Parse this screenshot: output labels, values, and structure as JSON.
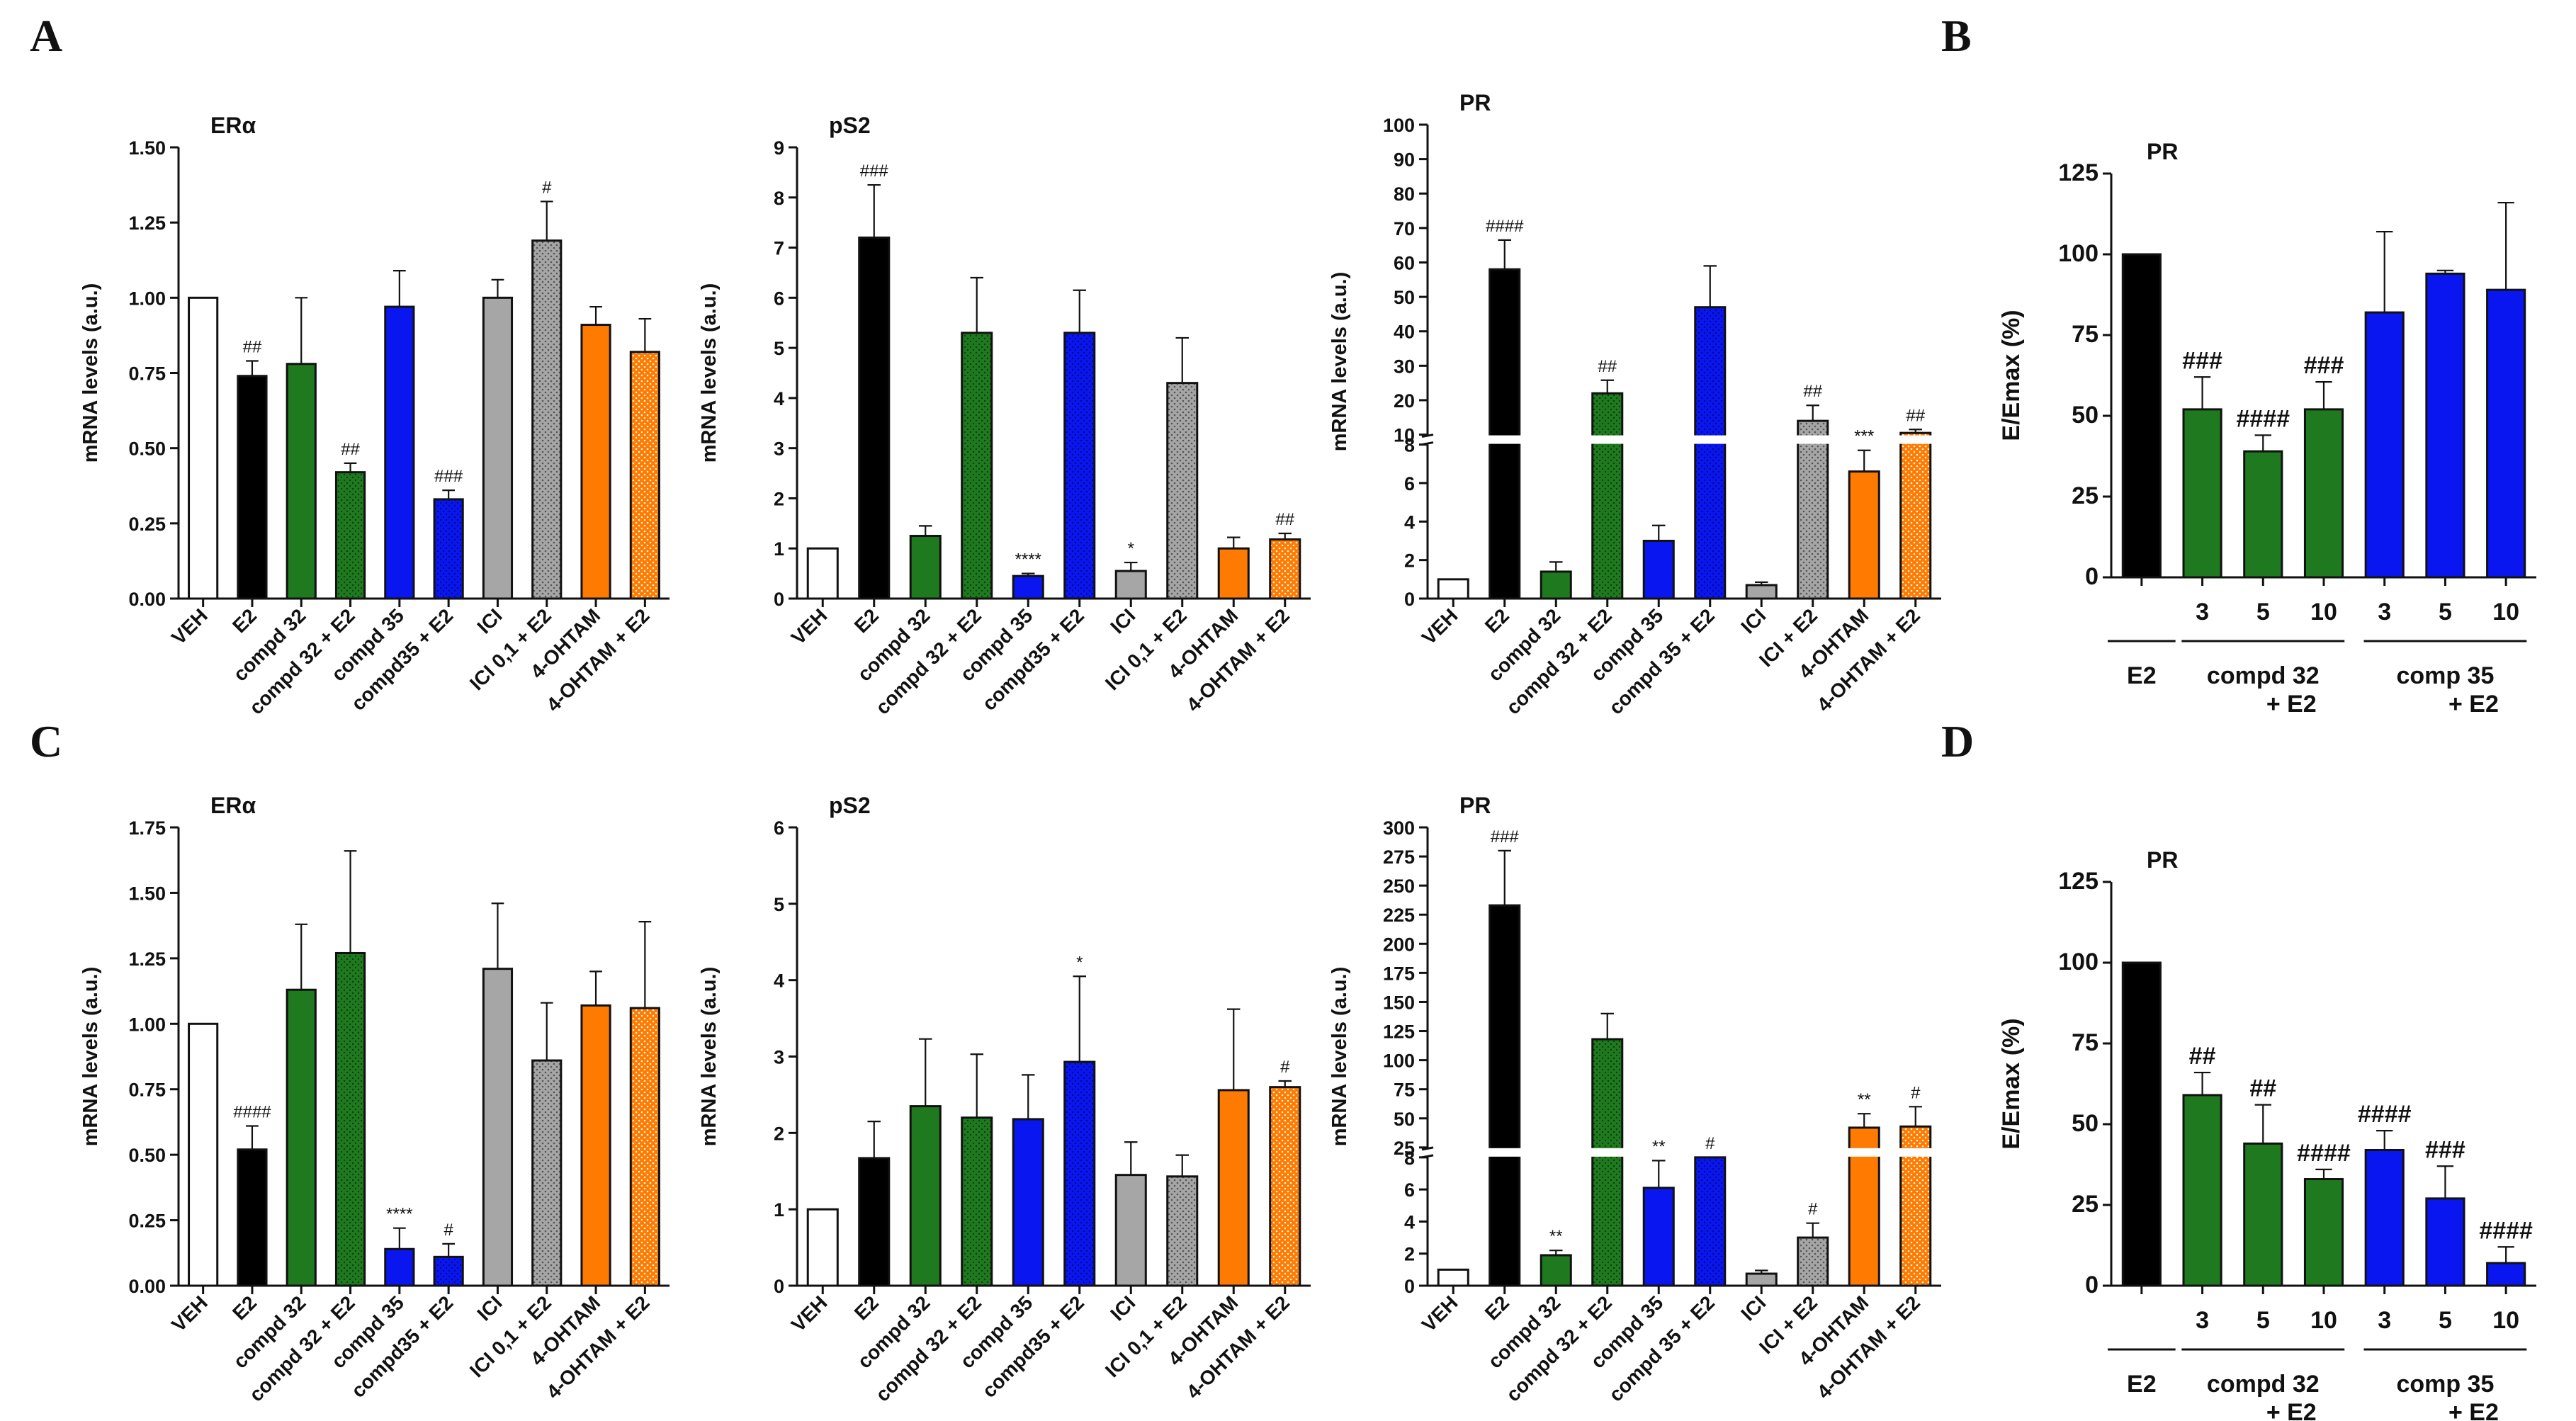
{
  "colors": {
    "white": "#ffffff",
    "black": "#000000",
    "green": "#1f7a1f",
    "blue": "#0a16f0",
    "gray": "#a6a6a6",
    "orange": "#ff7a00"
  },
  "panels": {
    "A": "A",
    "B": "B",
    "C": "C",
    "D": "D"
  },
  "chart_data": [
    {
      "id": "A1",
      "panel": "A",
      "type": "bar",
      "title": "ERα",
      "ylabel": "mRNA levels (a.u.)",
      "ylim": [
        0,
        1.5
      ],
      "ticks": [
        "0.00",
        "0.25",
        "0.50",
        "0.75",
        "1.00",
        "1.25",
        "1.50"
      ],
      "bars": [
        {
          "label": "VEH",
          "value": 1.0,
          "err": 0,
          "color": "white",
          "pattern": false,
          "sig": ""
        },
        {
          "label": "E2",
          "value": 0.74,
          "err": 0.05,
          "color": "black",
          "pattern": false,
          "sig": "##"
        },
        {
          "label": "compd 32",
          "value": 0.78,
          "err": 0.22,
          "color": "green",
          "pattern": false,
          "sig": ""
        },
        {
          "label": "compd 32 + E2",
          "value": 0.42,
          "err": 0.03,
          "color": "green",
          "pattern": true,
          "sig": "##"
        },
        {
          "label": "compd 35",
          "value": 0.97,
          "err": 0.12,
          "color": "blue",
          "pattern": false,
          "sig": ""
        },
        {
          "label": "compd35 + E2",
          "value": 0.33,
          "err": 0.03,
          "color": "blue",
          "pattern": true,
          "sig": "###"
        },
        {
          "label": "ICI",
          "value": 1.0,
          "err": 0.06,
          "color": "gray",
          "pattern": false,
          "sig": ""
        },
        {
          "label": "ICI 0,1 + E2",
          "value": 1.19,
          "err": 0.13,
          "color": "gray",
          "pattern": true,
          "sig": "#"
        },
        {
          "label": "4-OHTAM",
          "value": 0.91,
          "err": 0.06,
          "color": "orange",
          "pattern": false,
          "sig": ""
        },
        {
          "label": "4-OHTAM + E2",
          "value": 0.82,
          "err": 0.11,
          "color": "orange",
          "pattern": true,
          "sig": ""
        }
      ]
    },
    {
      "id": "A2",
      "panel": "A",
      "type": "bar",
      "title": "pS2",
      "ylabel": "mRNA levels (a.u.)",
      "ylim": [
        0,
        9
      ],
      "ticks": [
        "0",
        "1",
        "2",
        "3",
        "4",
        "5",
        "6",
        "7",
        "8",
        "9"
      ],
      "bars": [
        {
          "label": "VEH",
          "value": 1.0,
          "err": 0,
          "color": "white",
          "pattern": false,
          "sig": ""
        },
        {
          "label": "E2",
          "value": 7.2,
          "err": 1.05,
          "color": "black",
          "pattern": false,
          "sig": "###"
        },
        {
          "label": "compd 32",
          "value": 1.25,
          "err": 0.2,
          "color": "green",
          "pattern": false,
          "sig": ""
        },
        {
          "label": "compd 32 + E2",
          "value": 5.3,
          "err": 1.1,
          "color": "green",
          "pattern": true,
          "sig": ""
        },
        {
          "label": "compd 35",
          "value": 0.45,
          "err": 0.05,
          "color": "blue",
          "pattern": false,
          "sig": "****"
        },
        {
          "label": "compd35 + E2",
          "value": 5.3,
          "err": 0.85,
          "color": "blue",
          "pattern": true,
          "sig": ""
        },
        {
          "label": "ICI",
          "value": 0.55,
          "err": 0.17,
          "color": "gray",
          "pattern": false,
          "sig": "*"
        },
        {
          "label": "ICI 0,1 + E2",
          "value": 4.3,
          "err": 0.9,
          "color": "gray",
          "pattern": true,
          "sig": ""
        },
        {
          "label": "4-OHTAM",
          "value": 1.0,
          "err": 0.22,
          "color": "orange",
          "pattern": false,
          "sig": ""
        },
        {
          "label": "4-OHTAM + E2",
          "value": 1.18,
          "err": 0.12,
          "color": "orange",
          "pattern": true,
          "sig": "##"
        }
      ]
    },
    {
      "id": "A3",
      "panel": "A",
      "type": "bar",
      "title": "PR",
      "ylabel": "mRNA levels (a.u.)",
      "broken": true,
      "lower_max": 8,
      "upper_min": 10,
      "upper_max": 100,
      "lower_ticks": [
        "0",
        "2",
        "4",
        "6",
        "8"
      ],
      "upper_ticks": [
        "10",
        "20",
        "30",
        "40",
        "50",
        "60",
        "70",
        "80",
        "90",
        "100"
      ],
      "bars": [
        {
          "label": "VEH",
          "value": 1.0,
          "err": 0,
          "color": "white",
          "pattern": false,
          "sig": ""
        },
        {
          "label": "E2",
          "value": 58,
          "err": 8.5,
          "color": "black",
          "pattern": false,
          "sig": "####"
        },
        {
          "label": "compd 32",
          "value": 1.4,
          "err": 0.5,
          "color": "green",
          "pattern": false,
          "sig": ""
        },
        {
          "label": "compd 32 + E2",
          "value": 22,
          "err": 3.8,
          "color": "green",
          "pattern": true,
          "sig": "##"
        },
        {
          "label": "compd 35",
          "value": 3.0,
          "err": 0.8,
          "color": "blue",
          "pattern": false,
          "sig": ""
        },
        {
          "label": "compd 35 + E2",
          "value": 47,
          "err": 12,
          "color": "blue",
          "pattern": true,
          "sig": ""
        },
        {
          "label": "ICI",
          "value": 0.7,
          "err": 0.15,
          "color": "gray",
          "pattern": false,
          "sig": ""
        },
        {
          "label": "ICI + E2",
          "value": 14,
          "err": 4.5,
          "color": "gray",
          "pattern": true,
          "sig": "##"
        },
        {
          "label": "4-OHTAM",
          "value": 6.6,
          "err": 1.1,
          "color": "orange",
          "pattern": false,
          "sig": "***"
        },
        {
          "label": "4-OHTAM + E2",
          "value": 10.5,
          "err": 1.0,
          "color": "orange",
          "pattern": true,
          "sig": "##"
        }
      ]
    },
    {
      "id": "B",
      "panel": "B",
      "type": "bar",
      "title": "PR",
      "ylabel": "E/Emax (%)",
      "ylim": [
        0,
        125
      ],
      "ticks": [
        "0",
        "25",
        "50",
        "75",
        "100",
        "125"
      ],
      "bars": [
        {
          "label": "",
          "value": 100,
          "err": 0,
          "color": "black",
          "pattern": false,
          "sig": ""
        },
        {
          "label": "3",
          "value": 52,
          "err": 10,
          "color": "green",
          "pattern": false,
          "sig": "###"
        },
        {
          "label": "5",
          "value": 39,
          "err": 5,
          "color": "green",
          "pattern": false,
          "sig": "####"
        },
        {
          "label": "10",
          "value": 52,
          "err": 8.5,
          "color": "green",
          "pattern": false,
          "sig": "###"
        },
        {
          "label": "3",
          "value": 82,
          "err": 25,
          "color": "blue",
          "pattern": false,
          "sig": ""
        },
        {
          "label": "5",
          "value": 94,
          "err": 1,
          "color": "blue",
          "pattern": false,
          "sig": ""
        },
        {
          "label": "10",
          "value": 89,
          "err": 27,
          "color": "blue",
          "pattern": false,
          "sig": ""
        }
      ],
      "groups": [
        {
          "label": "E2",
          "sub": "",
          "from": 0,
          "to": 0
        },
        {
          "label": "compd 32",
          "sub": "+ E2",
          "from": 1,
          "to": 3
        },
        {
          "label": "comp 35",
          "sub": "+ E2",
          "from": 4,
          "to": 6
        }
      ]
    },
    {
      "id": "C1",
      "panel": "C",
      "type": "bar",
      "title": "ERα",
      "ylabel": "mRNA levels (a.u.)",
      "ylim": [
        0,
        1.75
      ],
      "ticks": [
        "0.00",
        "0.25",
        "0.50",
        "0.75",
        "1.00",
        "1.25",
        "1.50",
        "1.75"
      ],
      "bars": [
        {
          "label": "VEH",
          "value": 1.0,
          "err": 0,
          "color": "white",
          "pattern": false,
          "sig": ""
        },
        {
          "label": "E2",
          "value": 0.52,
          "err": 0.09,
          "color": "black",
          "pattern": false,
          "sig": "####"
        },
        {
          "label": "compd 32",
          "value": 1.13,
          "err": 0.25,
          "color": "green",
          "pattern": false,
          "sig": ""
        },
        {
          "label": "compd 32 + E2",
          "value": 1.27,
          "err": 0.39,
          "color": "green",
          "pattern": true,
          "sig": ""
        },
        {
          "label": "compd 35",
          "value": 0.14,
          "err": 0.08,
          "color": "blue",
          "pattern": false,
          "sig": "****"
        },
        {
          "label": "compd35 + E2",
          "value": 0.11,
          "err": 0.05,
          "color": "blue",
          "pattern": true,
          "sig": "#"
        },
        {
          "label": "ICI",
          "value": 1.21,
          "err": 0.25,
          "color": "gray",
          "pattern": false,
          "sig": ""
        },
        {
          "label": "ICI 0,1 + E2",
          "value": 0.86,
          "err": 0.22,
          "color": "gray",
          "pattern": true,
          "sig": ""
        },
        {
          "label": "4-OHTAM",
          "value": 1.07,
          "err": 0.13,
          "color": "orange",
          "pattern": false,
          "sig": ""
        },
        {
          "label": "4-OHTAM + E2",
          "value": 1.06,
          "err": 0.33,
          "color": "orange",
          "pattern": true,
          "sig": ""
        }
      ]
    },
    {
      "id": "C2",
      "panel": "C",
      "type": "bar",
      "title": "pS2",
      "ylabel": "mRNA levels (a.u.)",
      "ylim": [
        0,
        6
      ],
      "ticks": [
        "0",
        "1",
        "2",
        "3",
        "4",
        "5",
        "6"
      ],
      "bars": [
        {
          "label": "VEH",
          "value": 1.0,
          "err": 0,
          "color": "white",
          "pattern": false,
          "sig": ""
        },
        {
          "label": "E2",
          "value": 1.67,
          "err": 0.48,
          "color": "black",
          "pattern": false,
          "sig": ""
        },
        {
          "label": "compd 32",
          "value": 2.35,
          "err": 0.88,
          "color": "green",
          "pattern": false,
          "sig": ""
        },
        {
          "label": "compd 32 + E2",
          "value": 2.2,
          "err": 0.83,
          "color": "green",
          "pattern": true,
          "sig": ""
        },
        {
          "label": "compd 35",
          "value": 2.18,
          "err": 0.58,
          "color": "blue",
          "pattern": false,
          "sig": ""
        },
        {
          "label": "compd35 + E2",
          "value": 2.93,
          "err": 1.12,
          "color": "blue",
          "pattern": true,
          "sig": "*"
        },
        {
          "label": "ICI",
          "value": 1.45,
          "err": 0.43,
          "color": "gray",
          "pattern": false,
          "sig": ""
        },
        {
          "label": "ICI 0,1 + E2",
          "value": 1.43,
          "err": 0.28,
          "color": "gray",
          "pattern": true,
          "sig": ""
        },
        {
          "label": "4-OHTAM",
          "value": 2.56,
          "err": 1.06,
          "color": "orange",
          "pattern": false,
          "sig": ""
        },
        {
          "label": "4-OHTAM + E2",
          "value": 2.6,
          "err": 0.08,
          "color": "orange",
          "pattern": true,
          "sig": "#"
        }
      ]
    },
    {
      "id": "C3",
      "panel": "C",
      "type": "bar",
      "title": "PR",
      "ylabel": "mRNA levels (a.u.)",
      "broken": true,
      "lower_max": 8,
      "upper_min": 25,
      "upper_max": 300,
      "lower_ticks": [
        "0",
        "2",
        "4",
        "6",
        "8"
      ],
      "upper_ticks": [
        "25",
        "50",
        "75",
        "100",
        "125",
        "150",
        "175",
        "200",
        "225",
        "250",
        "275",
        "300"
      ],
      "bars": [
        {
          "label": "VEH",
          "value": 1.0,
          "err": 0,
          "color": "white",
          "pattern": false,
          "sig": ""
        },
        {
          "label": "E2",
          "value": 233,
          "err": 47,
          "color": "black",
          "pattern": false,
          "sig": "###"
        },
        {
          "label": "compd 32",
          "value": 1.9,
          "err": 0.3,
          "color": "green",
          "pattern": false,
          "sig": "**"
        },
        {
          "label": "compd 32 + E2",
          "value": 118,
          "err": 22,
          "color": "green",
          "pattern": true,
          "sig": ""
        },
        {
          "label": "compd 35",
          "value": 6.1,
          "err": 1.7,
          "color": "blue",
          "pattern": false,
          "sig": "**"
        },
        {
          "label": "compd 35 + E2",
          "value": 8.0,
          "err": 0,
          "color": "blue",
          "pattern": true,
          "sig": "#"
        },
        {
          "label": "ICI",
          "value": 0.75,
          "err": 0.2,
          "color": "gray",
          "pattern": false,
          "sig": ""
        },
        {
          "label": "ICI + E2",
          "value": 3.0,
          "err": 0.9,
          "color": "gray",
          "pattern": true,
          "sig": "#"
        },
        {
          "label": "4-OHTAM",
          "value": 42,
          "err": 12,
          "color": "orange",
          "pattern": false,
          "sig": "**"
        },
        {
          "label": "4-OHTAM + E2",
          "value": 43,
          "err": 17,
          "color": "orange",
          "pattern": true,
          "sig": "#"
        }
      ]
    },
    {
      "id": "D",
      "panel": "D",
      "type": "bar",
      "title": "PR",
      "ylabel": "E/Emax (%)",
      "ylim": [
        0,
        125
      ],
      "ticks": [
        "0",
        "25",
        "50",
        "75",
        "100",
        "125"
      ],
      "bars": [
        {
          "label": "",
          "value": 100,
          "err": 0,
          "color": "black",
          "pattern": false,
          "sig": ""
        },
        {
          "label": "3",
          "value": 59,
          "err": 7,
          "color": "green",
          "pattern": false,
          "sig": "##"
        },
        {
          "label": "5",
          "value": 44,
          "err": 12,
          "color": "green",
          "pattern": false,
          "sig": "##"
        },
        {
          "label": "10",
          "value": 33,
          "err": 3,
          "color": "green",
          "pattern": false,
          "sig": "####"
        },
        {
          "label": "3",
          "value": 42,
          "err": 6,
          "color": "blue",
          "pattern": false,
          "sig": "####"
        },
        {
          "label": "5",
          "value": 27,
          "err": 10,
          "color": "blue",
          "pattern": false,
          "sig": "###"
        },
        {
          "label": "10",
          "value": 7,
          "err": 5,
          "color": "blue",
          "pattern": false,
          "sig": "####"
        }
      ],
      "groups": [
        {
          "label": "E2",
          "sub": "",
          "from": 0,
          "to": 0
        },
        {
          "label": "compd 32",
          "sub": "+ E2",
          "from": 1,
          "to": 3
        },
        {
          "label": "comp 35",
          "sub": "+ E2",
          "from": 4,
          "to": 6
        }
      ]
    }
  ]
}
